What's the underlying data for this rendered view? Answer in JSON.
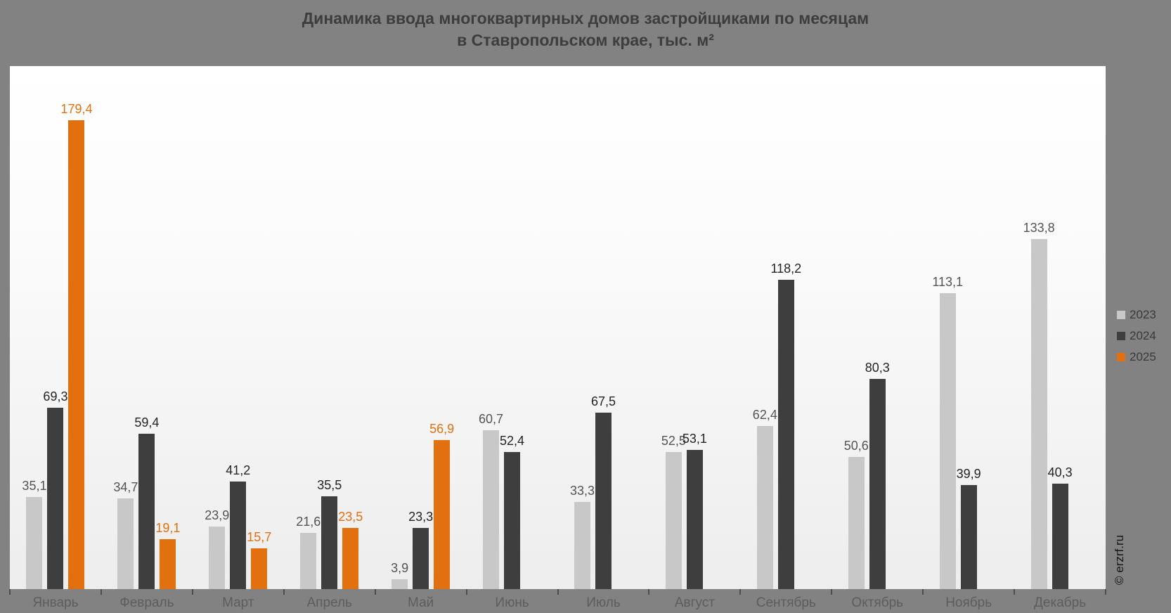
{
  "title": {
    "line1": "Динамика ввода многоквартирных домов застройщиками по месяцам",
    "line2": "в Ставропольском крае, тыс. м²"
  },
  "watermark": "© erzrf.ru",
  "colors": {
    "background": "#828282",
    "plot_top": "#ffffff",
    "plot_bottom": "#ededed",
    "title_text": "#3d3d3d",
    "axis_label_text": "#5d5d5d",
    "tick": "#4d4d4d"
  },
  "chart_data": {
    "type": "bar",
    "title": "Динамика ввода многоквартирных домов застройщиками по месяцам в Ставропольском крае, тыс. м²",
    "categories": [
      "Январь",
      "Февраль",
      "Март",
      "Апрель",
      "Май",
      "Июнь",
      "Июль",
      "Август",
      "Сентябрь",
      "Октябрь",
      "Ноябрь",
      "Декабрь"
    ],
    "series": [
      {
        "name": "2023",
        "color": "#c8c8c8",
        "label_color": "#545454",
        "values": [
          35.1,
          34.7,
          23.9,
          21.6,
          3.9,
          60.7,
          33.3,
          52.5,
          62.4,
          50.6,
          113.1,
          133.8
        ]
      },
      {
        "name": "2024",
        "color": "#3e3e3e",
        "label_color": "#242424",
        "values": [
          69.3,
          59.4,
          41.2,
          35.5,
          23.3,
          52.4,
          67.5,
          53.1,
          118.2,
          80.3,
          39.9,
          40.3
        ]
      },
      {
        "name": "2025",
        "color": "#e2700e",
        "label_color": "#e2700e",
        "values": [
          179.4,
          19.1,
          15.7,
          23.5,
          56.9,
          null,
          null,
          null,
          null,
          null,
          null,
          null
        ]
      }
    ],
    "decimal_separator": ",",
    "xlabel": "",
    "ylabel": "",
    "ylim": [
      0,
      200
    ],
    "grid": false,
    "legend_position": "right",
    "value_labels": true
  }
}
